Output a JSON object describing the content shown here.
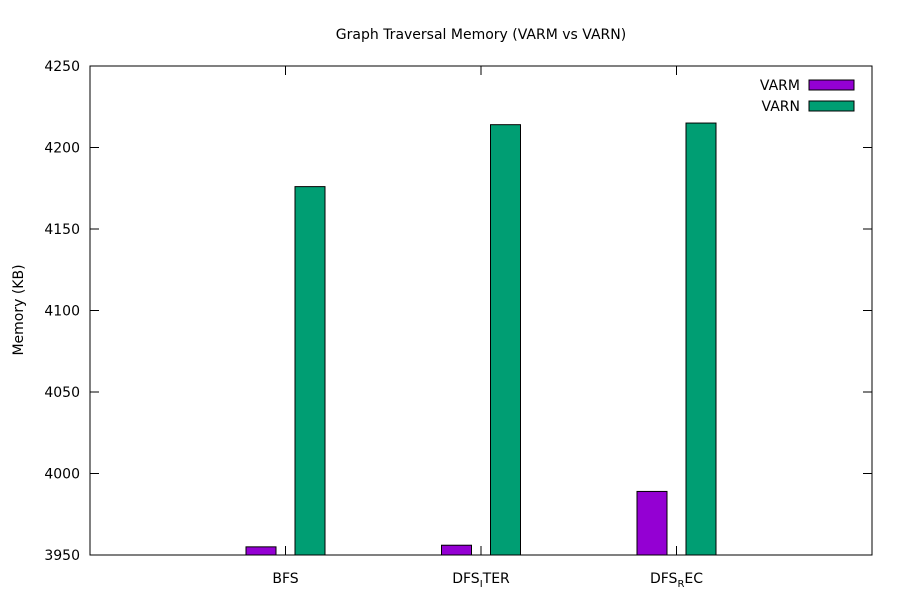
{
  "chart_data": {
    "type": "bar",
    "title": "Graph Traversal Memory (VARM vs VARN)",
    "xlabel": "",
    "ylabel": "Memory (KB)",
    "ylim": [
      3950,
      4250
    ],
    "yticks": [
      3950,
      4000,
      4050,
      4100,
      4150,
      4200,
      4250
    ],
    "categories": [
      {
        "base": "BFS",
        "sub": "",
        "rest": ""
      },
      {
        "base": "DFS",
        "sub": "I",
        "rest": "TER"
      },
      {
        "base": "DFS",
        "sub": "R",
        "rest": "EC"
      }
    ],
    "series": [
      {
        "name": "VARM",
        "color": "#9400d3",
        "values": [
          3955,
          3956,
          3989
        ]
      },
      {
        "name": "VARN",
        "color": "#009e73",
        "values": [
          4176,
          4214,
          4215
        ]
      }
    ],
    "grid": false,
    "legend_position": "top-right"
  }
}
